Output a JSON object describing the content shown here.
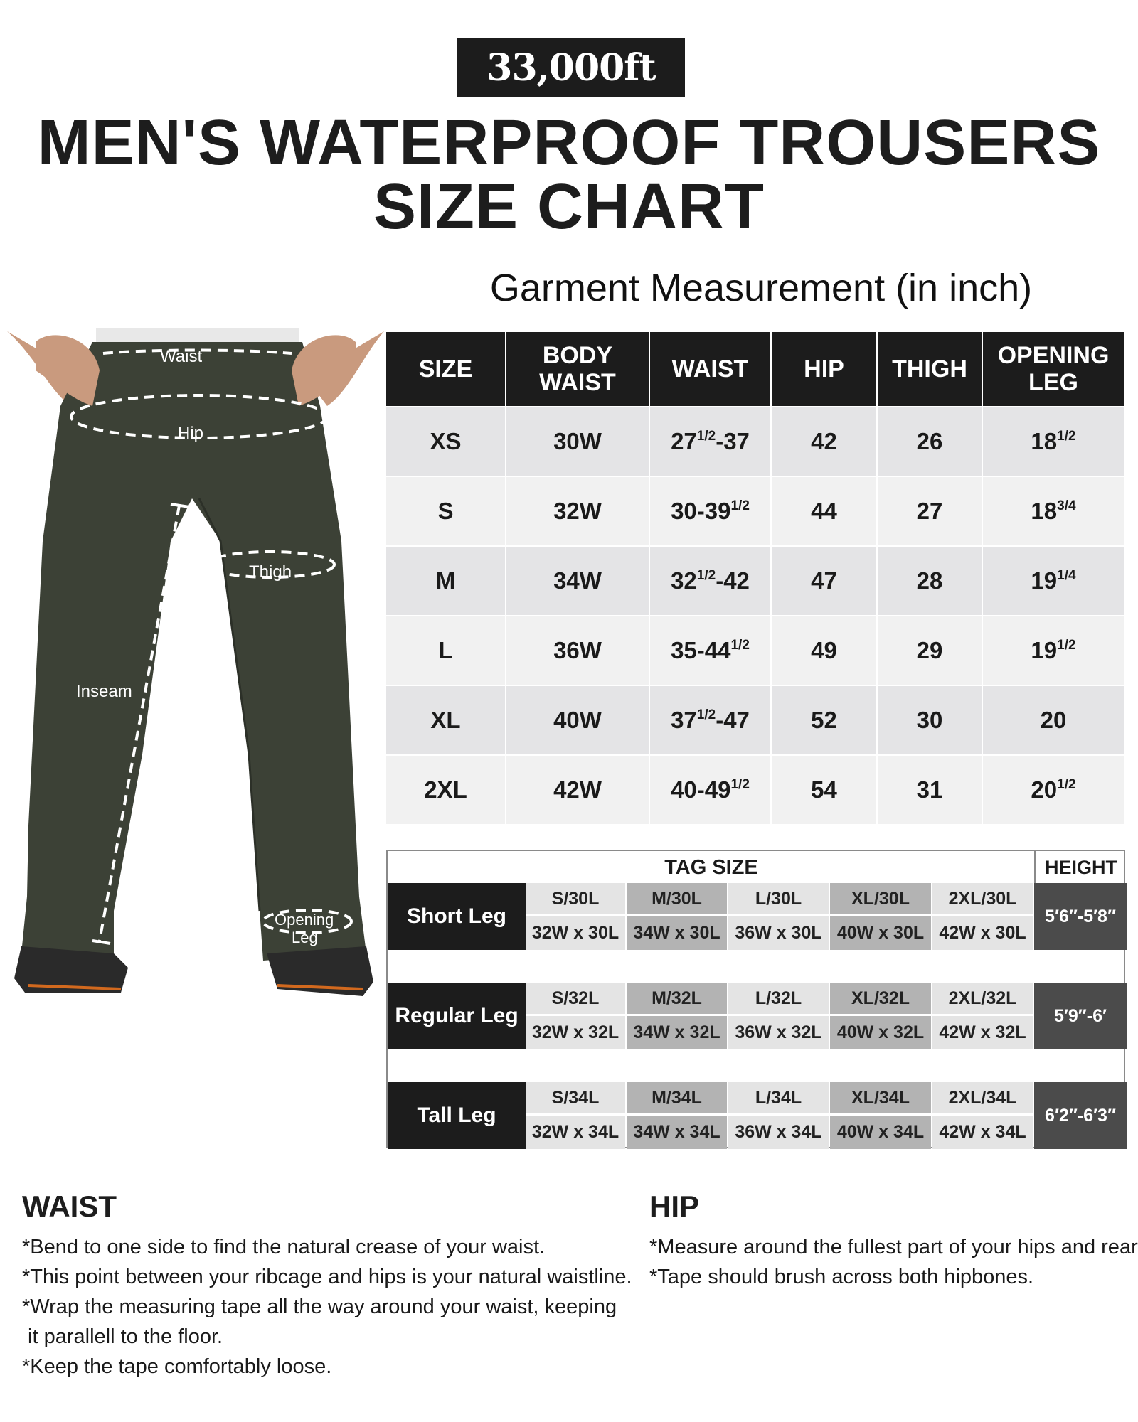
{
  "brand": {
    "logo": "33,000ft"
  },
  "title": {
    "line1": "MEN'S WATERPROOF TROUSERS",
    "line2": "SIZE CHART"
  },
  "subtitle": "Garment Measurement (in inch)",
  "diagram": {
    "labels": {
      "waist": "Waist",
      "hip": "Hip",
      "thigh": "Thigh",
      "inseam": "Inseam",
      "opening1": "Opening",
      "opening2": "Leg"
    },
    "pants_color": "#3c4136"
  },
  "size_table": {
    "headers": [
      [
        "SIZE"
      ],
      [
        "BODY",
        "WAIST"
      ],
      [
        "WAIST"
      ],
      [
        "HIP"
      ],
      [
        "THIGH"
      ],
      [
        "OPENING",
        "LEG"
      ]
    ],
    "rows": [
      {
        "size": "XS",
        "body_waist": "30W",
        "waist": {
          "pre": "27",
          "sup": "1/2",
          "post": "-37"
        },
        "hip": "42",
        "thigh": "26",
        "opening": {
          "pre": "18",
          "sup": "1/2"
        }
      },
      {
        "size": "S",
        "body_waist": "32W",
        "waist": {
          "pre": "30-39",
          "sup": "1/2",
          "post": ""
        },
        "hip": "44",
        "thigh": "27",
        "opening": {
          "pre": "18",
          "sup": "3/4"
        }
      },
      {
        "size": "M",
        "body_waist": "34W",
        "waist": {
          "pre": "32",
          "sup": "1/2",
          "post": "-42"
        },
        "hip": "47",
        "thigh": "28",
        "opening": {
          "pre": "19",
          "sup": "1/4"
        }
      },
      {
        "size": "L",
        "body_waist": "36W",
        "waist": {
          "pre": "35-44",
          "sup": "1/2",
          "post": ""
        },
        "hip": "49",
        "thigh": "29",
        "opening": {
          "pre": "19",
          "sup": "1/2"
        }
      },
      {
        "size": "XL",
        "body_waist": "40W",
        "waist": {
          "pre": "37",
          "sup": "1/2",
          "post": "-47"
        },
        "hip": "52",
        "thigh": "30",
        "opening": {
          "pre": "20",
          "sup": ""
        }
      },
      {
        "size": "2XL",
        "body_waist": "42W",
        "waist": {
          "pre": "40-49",
          "sup": "1/2",
          "post": ""
        },
        "hip": "54",
        "thigh": "31",
        "opening": {
          "pre": "20",
          "sup": "1/2"
        }
      }
    ]
  },
  "tag_table": {
    "header": "TAG SIZE",
    "height_header": "HEIGHT",
    "groups": [
      {
        "label": "Short Leg",
        "height": "5′6″-5′8″",
        "tags": [
          "S/30L",
          "M/30L",
          "L/30L",
          "XL/30L",
          "2XL/30L"
        ],
        "dims": [
          "32W x 30L",
          "34W x 30L",
          "36W x 30L",
          "40W x 30L",
          "42W x 30L"
        ]
      },
      {
        "label": "Regular Leg",
        "height": "5′9″-6′",
        "tags": [
          "S/32L",
          "M/32L",
          "L/32L",
          "XL/32L",
          "2XL/32L"
        ],
        "dims": [
          "32W x 32L",
          "34W x 32L",
          "36W x 32L",
          "40W x 32L",
          "42W x 32L"
        ]
      },
      {
        "label": "Tall Leg",
        "height": "6′2″-6′3″",
        "tags": [
          "S/34L",
          "M/34L",
          "L/34L",
          "XL/34L",
          "2XL/34L"
        ],
        "dims": [
          "32W x 34L",
          "34W x 34L",
          "36W x 34L",
          "40W x 34L",
          "42W x 34L"
        ]
      }
    ]
  },
  "waist_section": {
    "heading": "WAIST",
    "lines": [
      "*Bend to one side to find the natural crease of your waist.",
      "*This point between your ribcage and hips is your natural waistline.",
      "*Wrap the measuring tape all the way around your waist, keeping",
      " it parallell to the floor.",
      "*Keep the tape comfortably loose."
    ]
  },
  "hip_section": {
    "heading": "HIP",
    "lines": [
      "*Measure around the fullest part of your hips and rear.",
      "*Tape should brush across both hipbones."
    ]
  }
}
